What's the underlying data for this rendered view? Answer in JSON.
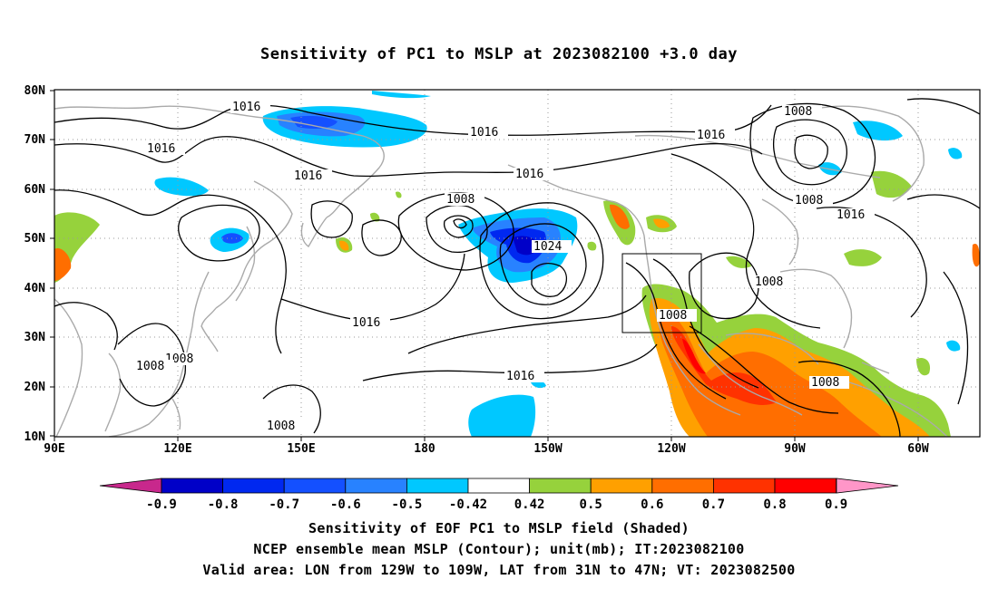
{
  "title": "Sensitivity of PC1 to MSLP at 2023082100 +3.0 day",
  "lat_ticks": [
    "80N",
    "70N",
    "60N",
    "50N",
    "40N",
    "30N",
    "20N",
    "10N"
  ],
  "lon_ticks": [
    "90E",
    "120E",
    "150E",
    "180",
    "150W",
    "120W",
    "90W",
    "60W"
  ],
  "contour_labels": {
    "c1": "1016",
    "c2": "1016",
    "c3": "1016",
    "c4": "1016",
    "c5": "1016",
    "c6": "1008",
    "c7": "1016",
    "c8": "1008",
    "c9": "1024",
    "c10": "1016",
    "c11": "1016",
    "c12": "1008",
    "c13": "1008",
    "c14": "1008",
    "c15": "1008",
    "c16": "1008",
    "c17": "1016",
    "c18": "1008",
    "c19": "1008"
  },
  "colorbar": {
    "labels": [
      "-0.9",
      "-0.8",
      "-0.7",
      "-0.6",
      "-0.5",
      "-0.42",
      "0.42",
      "0.5",
      "0.6",
      "0.7",
      "0.8",
      "0.9"
    ],
    "colors": [
      "#0000c8",
      "#0028f0",
      "#1450ff",
      "#2882ff",
      "#00c8ff",
      "#ffffff",
      "#96d23c",
      "#ffa000",
      "#ff6e00",
      "#ff3200",
      "#ff0000"
    ],
    "low_end_color": "#c8288c",
    "high_end_color": "#ff96c8"
  },
  "footer": {
    "line1": "Sensitivity of EOF PC1 to MSLP field (Shaded)",
    "line2": "NCEP ensemble mean MSLP (Contour); unit(mb); IT:2023082100",
    "line3": "Valid area: LON from 129W to 109W, LAT from 31N to 47N; VT: 2023082500"
  }
}
